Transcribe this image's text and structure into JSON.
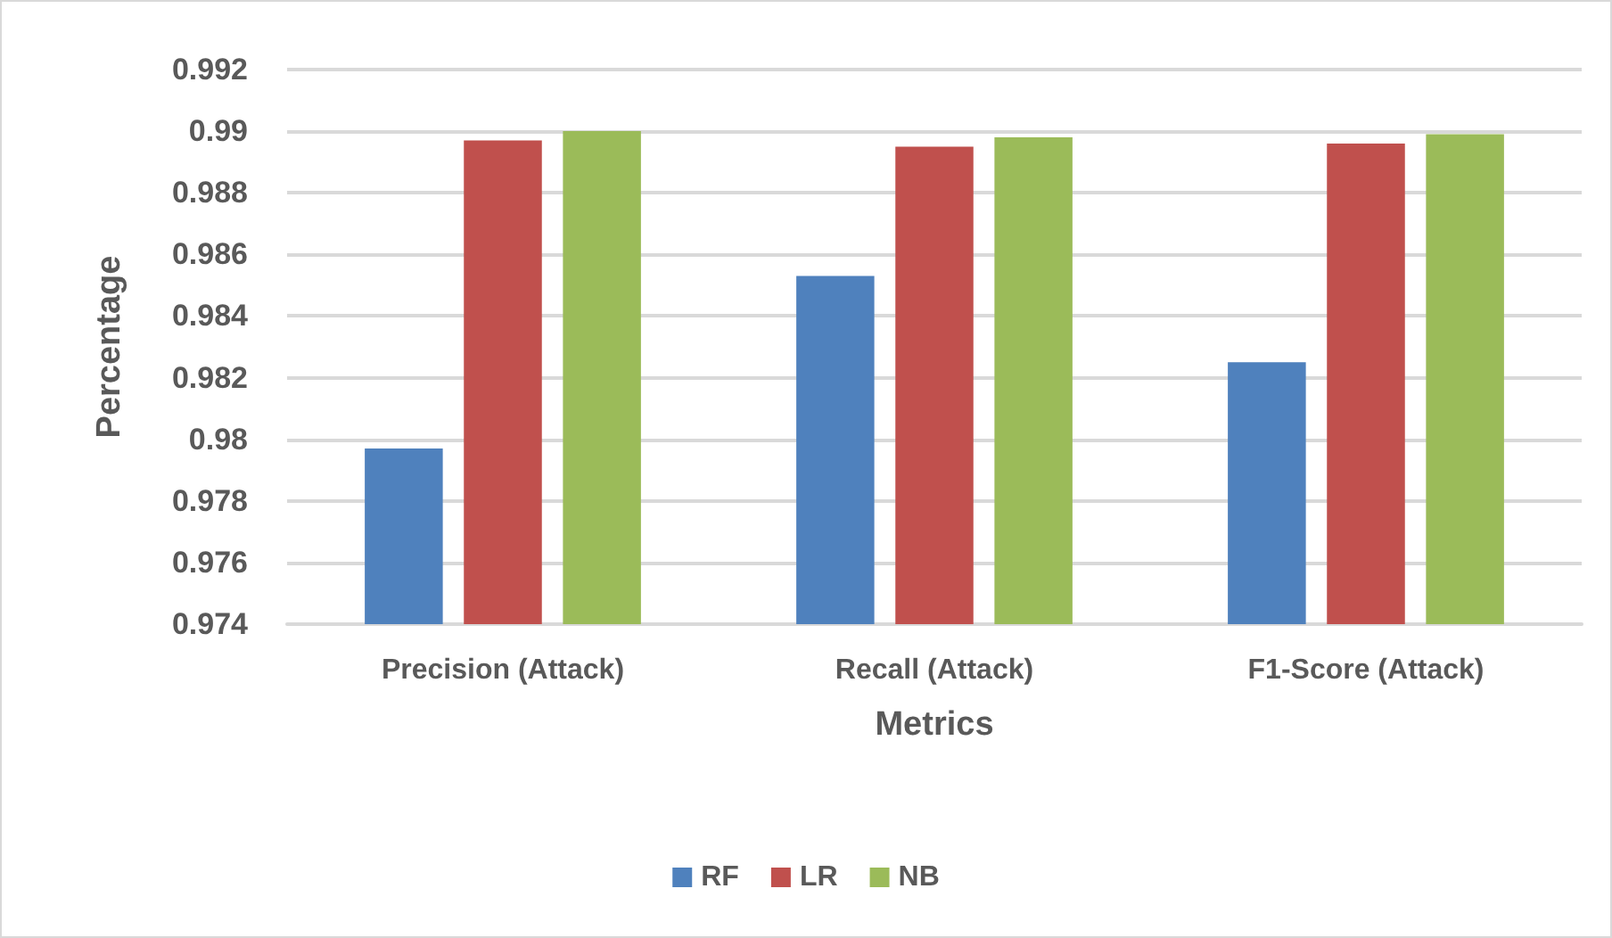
{
  "chart_data": {
    "type": "bar",
    "xlabel": "Metrics",
    "ylabel": "Percentage",
    "categories": [
      "Precision (Attack)",
      "Recall (Attack)",
      "F1-Score (Attack)"
    ],
    "series": [
      {
        "name": "RF",
        "color": "#4f81bd",
        "values": [
          0.9797,
          0.9853,
          0.9825
        ]
      },
      {
        "name": "LR",
        "color": "#c0504d",
        "values": [
          0.9897,
          0.9895,
          0.9896
        ]
      },
      {
        "name": "NB",
        "color": "#9bbb59",
        "values": [
          0.99,
          0.9898,
          0.9899
        ]
      }
    ],
    "ylim": [
      0.974,
      0.992
    ],
    "yticks": [
      0.974,
      0.976,
      0.978,
      0.98,
      0.982,
      0.984,
      0.986,
      0.988,
      0.99,
      0.992
    ],
    "grid": "y",
    "legend": "bottom"
  }
}
